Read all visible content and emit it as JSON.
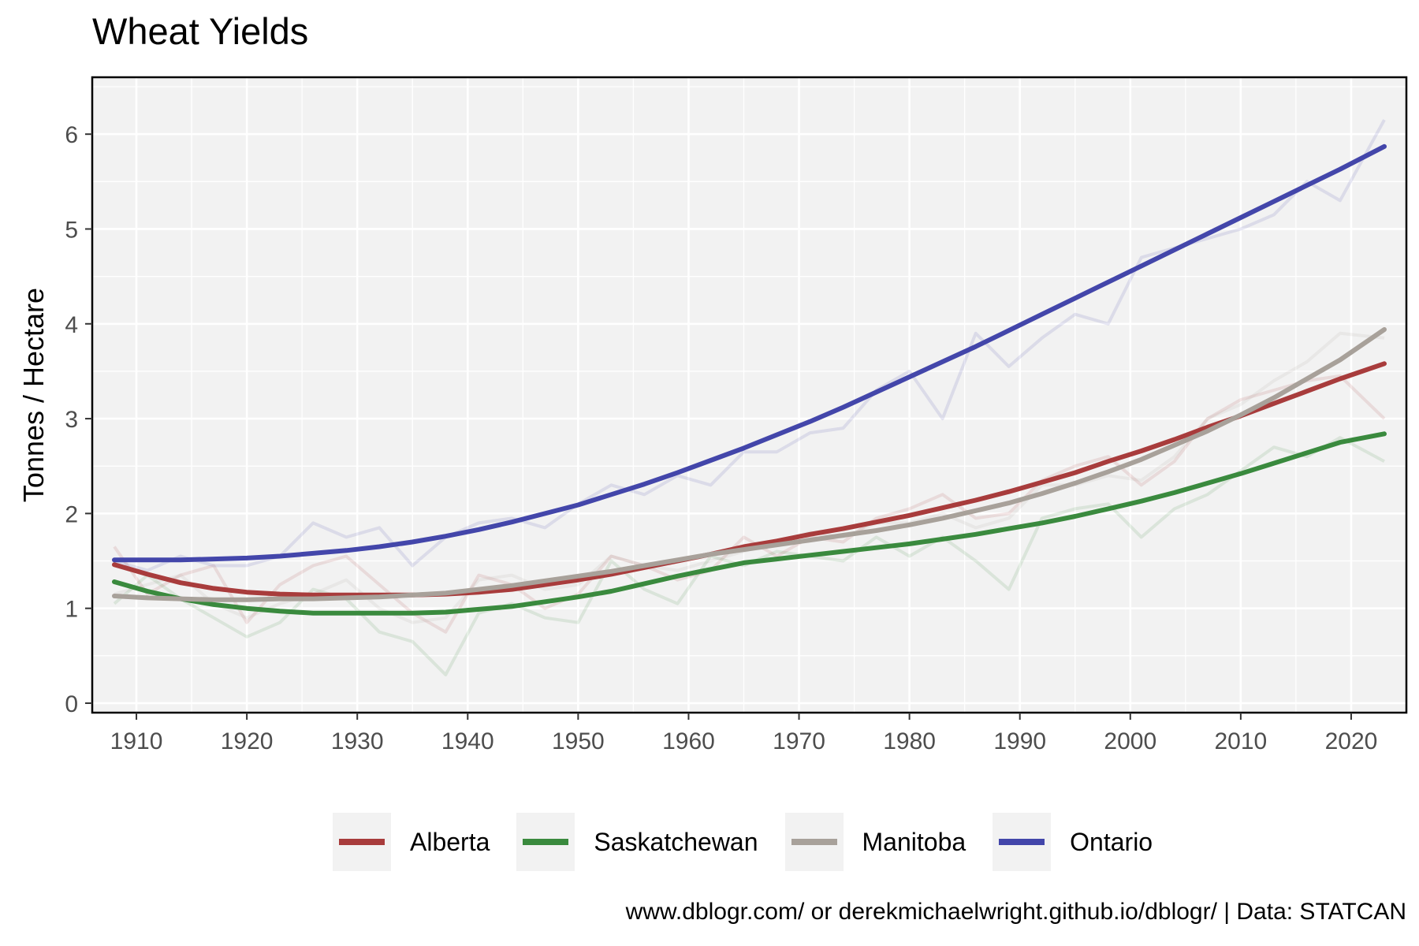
{
  "chart_data": {
    "type": "line",
    "title": "Wheat Yields",
    "xlabel": "",
    "ylabel": "Tonnes / Hectare",
    "xlim": [
      1906,
      2025
    ],
    "ylim": [
      -0.1,
      6.6
    ],
    "x_ticks": [
      1910,
      1920,
      1930,
      1940,
      1950,
      1960,
      1970,
      1980,
      1990,
      2000,
      2010,
      2020
    ],
    "y_ticks": [
      0,
      1,
      2,
      3,
      4,
      5,
      6
    ],
    "grid": true,
    "legend_position": "bottom",
    "caption": "www.dblogr.com/ or derekmichaelwright.github.io/dblogr/ | Data: STATCAN",
    "x": [
      1908,
      1911,
      1914,
      1917,
      1920,
      1923,
      1926,
      1929,
      1932,
      1935,
      1938,
      1941,
      1944,
      1947,
      1950,
      1953,
      1956,
      1959,
      1962,
      1965,
      1968,
      1971,
      1974,
      1977,
      1980,
      1983,
      1986,
      1989,
      1992,
      1995,
      1998,
      2001,
      2004,
      2007,
      2010,
      2013,
      2016,
      2019,
      2023
    ],
    "series": [
      {
        "name": "Alberta",
        "color": "#a83c3c",
        "raw": [
          1.65,
          1.15,
          1.35,
          1.45,
          0.85,
          1.25,
          1.45,
          1.55,
          1.25,
          0.95,
          0.75,
          1.35,
          1.25,
          1.0,
          1.15,
          1.55,
          1.45,
          1.3,
          1.4,
          1.75,
          1.55,
          1.75,
          1.7,
          1.95,
          2.05,
          2.2,
          1.95,
          2.0,
          2.35,
          2.5,
          2.6,
          2.3,
          2.55,
          3.0,
          3.2,
          3.3,
          3.4,
          3.45,
          3.0
        ],
        "smooth": [
          1.46,
          1.36,
          1.27,
          1.21,
          1.17,
          1.15,
          1.14,
          1.14,
          1.14,
          1.14,
          1.15,
          1.17,
          1.2,
          1.25,
          1.3,
          1.36,
          1.43,
          1.5,
          1.57,
          1.65,
          1.71,
          1.78,
          1.84,
          1.91,
          1.98,
          2.06,
          2.14,
          2.23,
          2.33,
          2.43,
          2.55,
          2.66,
          2.78,
          2.91,
          3.03,
          3.16,
          3.29,
          3.42,
          3.58
        ]
      },
      {
        "name": "Saskatchewan",
        "color": "#3a8a3e",
        "raw": [
          1.05,
          1.35,
          1.1,
          0.9,
          0.7,
          0.85,
          1.2,
          1.1,
          0.75,
          0.65,
          0.3,
          0.95,
          1.05,
          0.9,
          0.85,
          1.5,
          1.2,
          1.05,
          1.55,
          1.45,
          1.6,
          1.55,
          1.5,
          1.75,
          1.55,
          1.75,
          1.5,
          1.2,
          1.95,
          2.05,
          2.1,
          1.75,
          2.05,
          2.2,
          2.45,
          2.7,
          2.6,
          2.8,
          2.55
        ],
        "smooth": [
          1.28,
          1.18,
          1.1,
          1.04,
          1.0,
          0.97,
          0.95,
          0.95,
          0.95,
          0.95,
          0.96,
          0.99,
          1.02,
          1.07,
          1.12,
          1.18,
          1.26,
          1.34,
          1.41,
          1.48,
          1.52,
          1.56,
          1.6,
          1.64,
          1.68,
          1.73,
          1.78,
          1.84,
          1.9,
          1.97,
          2.05,
          2.13,
          2.22,
          2.32,
          2.42,
          2.53,
          2.64,
          2.75,
          2.84
        ]
      },
      {
        "name": "Manitoba",
        "color": "#a8a19a",
        "raw": [
          1.15,
          1.25,
          1.35,
          1.05,
          0.9,
          1.05,
          1.15,
          1.3,
          1.0,
          0.85,
          0.9,
          1.3,
          1.35,
          1.2,
          1.25,
          1.55,
          1.45,
          1.4,
          1.5,
          1.6,
          1.7,
          1.8,
          1.75,
          1.9,
          1.9,
          2.0,
          1.85,
          1.95,
          2.3,
          2.3,
          2.4,
          2.35,
          2.6,
          3.0,
          3.15,
          3.4,
          3.6,
          3.9,
          3.85
        ],
        "smooth": [
          1.13,
          1.11,
          1.1,
          1.09,
          1.09,
          1.1,
          1.1,
          1.11,
          1.12,
          1.14,
          1.16,
          1.2,
          1.24,
          1.29,
          1.34,
          1.39,
          1.45,
          1.51,
          1.57,
          1.62,
          1.67,
          1.72,
          1.77,
          1.82,
          1.88,
          1.95,
          2.03,
          2.11,
          2.21,
          2.32,
          2.44,
          2.57,
          2.72,
          2.87,
          3.04,
          3.22,
          3.42,
          3.62,
          3.94
        ]
      },
      {
        "name": "Ontario",
        "color": "#4346aa",
        "raw": [
          1.5,
          1.4,
          1.55,
          1.45,
          1.45,
          1.55,
          1.9,
          1.75,
          1.85,
          1.45,
          1.75,
          1.9,
          1.95,
          1.85,
          2.1,
          2.3,
          2.2,
          2.4,
          2.3,
          2.65,
          2.65,
          2.85,
          2.9,
          3.3,
          3.5,
          3.0,
          3.9,
          3.55,
          3.85,
          4.1,
          4.0,
          4.7,
          4.8,
          4.9,
          5.0,
          5.15,
          5.5,
          5.3,
          6.15
        ],
        "smooth": [
          1.51,
          1.51,
          1.51,
          1.52,
          1.53,
          1.55,
          1.58,
          1.61,
          1.65,
          1.7,
          1.76,
          1.83,
          1.91,
          2.0,
          2.09,
          2.2,
          2.31,
          2.43,
          2.56,
          2.69,
          2.83,
          2.97,
          3.12,
          3.28,
          3.44,
          3.6,
          3.76,
          3.93,
          4.1,
          4.27,
          4.44,
          4.61,
          4.78,
          4.95,
          5.12,
          5.29,
          5.46,
          5.63,
          5.87
        ]
      }
    ]
  }
}
